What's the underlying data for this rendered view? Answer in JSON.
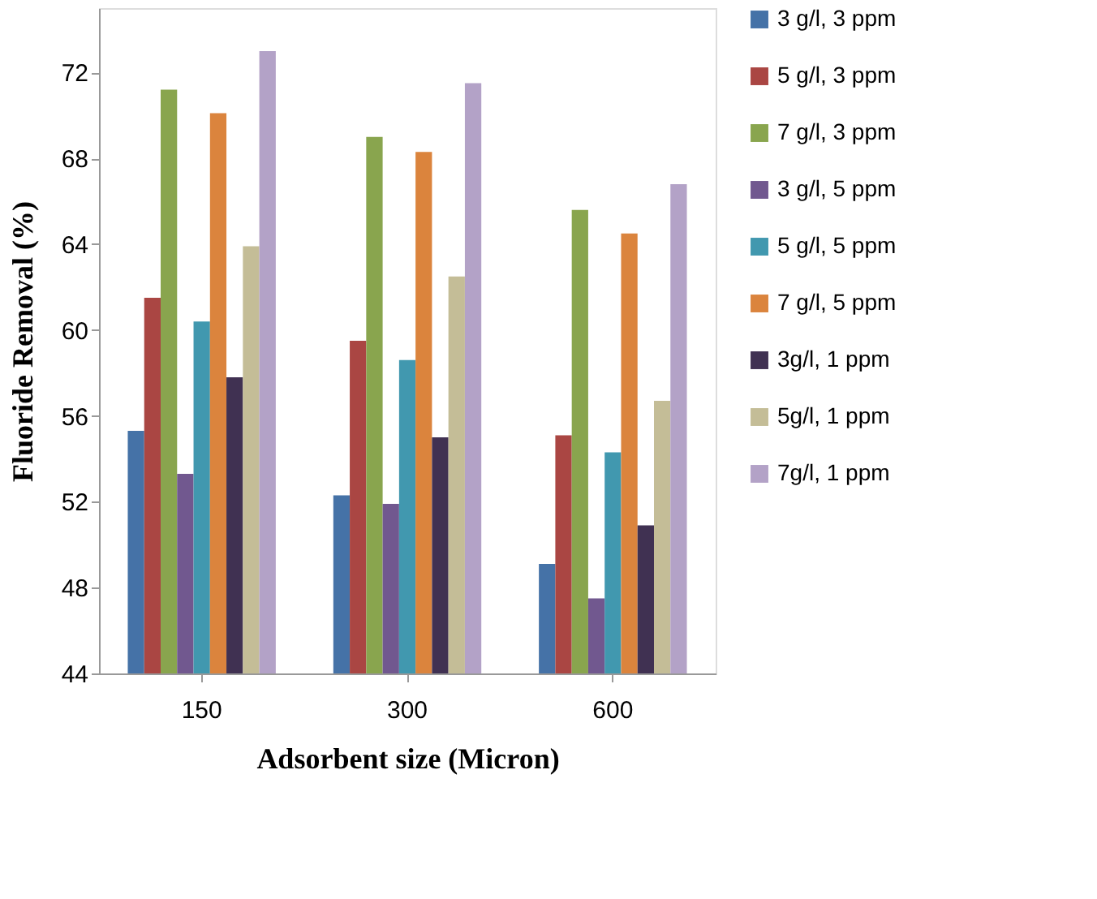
{
  "chart_data": {
    "type": "bar",
    "xlabel": "Adsorbent size (Micron)",
    "ylabel": "Fluoride Removal (%)",
    "categories": [
      "150",
      "300",
      "600"
    ],
    "series": [
      {
        "name": "3 g/l, 3 ppm",
        "color": "#4572a7",
        "values": [
          55.3,
          52.3,
          49.1
        ]
      },
      {
        "name": "5 g/l, 3 ppm",
        "color": "#aa4643",
        "values": [
          61.5,
          59.5,
          55.1
        ]
      },
      {
        "name": "7 g/l, 3 ppm",
        "color": "#89a54e",
        "values": [
          71.2,
          69.0,
          65.6
        ]
      },
      {
        "name": "3 g/l, 5 ppm",
        "color": "#71588f",
        "values": [
          53.3,
          51.9,
          47.5
        ]
      },
      {
        "name": "5 g/l, 5 ppm",
        "color": "#4198af",
        "values": [
          60.4,
          58.6,
          54.3
        ]
      },
      {
        "name": "7 g/l, 5 ppm",
        "color": "#db843d",
        "values": [
          70.1,
          68.3,
          64.5
        ]
      },
      {
        "name": "3g/l, 1 ppm",
        "color": "#403152",
        "values": [
          57.8,
          55.0,
          50.9
        ]
      },
      {
        "name": "5g/l, 1 ppm",
        "color": "#c4bd97",
        "values": [
          63.9,
          62.5,
          56.7
        ]
      },
      {
        "name": "7g/l, 1 ppm",
        "color": "#b3a2c7",
        "values": [
          73.0,
          71.5,
          66.8
        ]
      }
    ],
    "ylim": [
      44,
      75
    ],
    "yticks": [
      44,
      48,
      52,
      56,
      60,
      64,
      68,
      72
    ],
    "grid": false,
    "legend": "right"
  }
}
